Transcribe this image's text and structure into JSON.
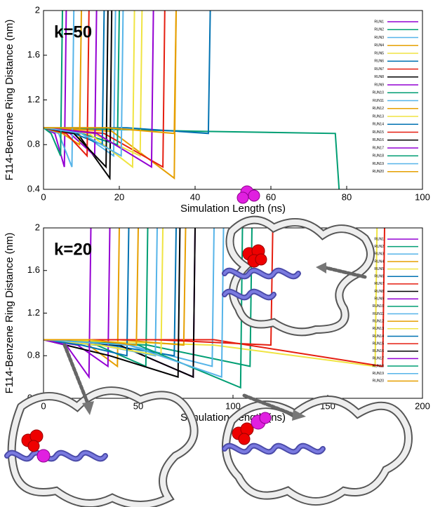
{
  "chart_data": [
    {
      "type": "line",
      "annotation": "k=50",
      "x_label": "Simulation Length (ns)",
      "y_label": "F114-Benzene Ring Distance (nm)",
      "xlim": [
        0,
        100
      ],
      "xticks": [
        0,
        20,
        40,
        60,
        80,
        100
      ],
      "ylim": [
        0.4,
        2
      ],
      "yticks": [
        0.4,
        0.8,
        1.2,
        1.6,
        2
      ],
      "legend": "right",
      "series": [
        {
          "name": "RUN1",
          "color": "#9400d3",
          "x": [
            0,
            3,
            5.5,
            6
          ],
          "values": [
            0.95,
            0.9,
            0.6,
            2
          ]
        },
        {
          "name": "RUN2",
          "color": "#009e73",
          "x": [
            0,
            40,
            77,
            78
          ],
          "values": [
            0.95,
            0.92,
            0.9,
            0.4
          ]
        },
        {
          "name": "RUN3",
          "color": "#56b4e9",
          "x": [
            0,
            10,
            18.5,
            19
          ],
          "values": [
            0.95,
            0.9,
            0.7,
            2
          ]
        },
        {
          "name": "RUN4",
          "color": "#e69f00",
          "x": [
            0,
            18,
            34.5,
            35
          ],
          "values": [
            0.95,
            0.92,
            0.5,
            2
          ]
        },
        {
          "name": "RUN5",
          "color": "#f0e442",
          "x": [
            0,
            13,
            25.5,
            26
          ],
          "values": [
            0.95,
            0.9,
            0.7,
            2
          ]
        },
        {
          "name": "RUN6",
          "color": "#0072b2",
          "x": [
            0,
            22,
            43.5,
            44
          ],
          "values": [
            0.95,
            0.95,
            0.9,
            2
          ]
        },
        {
          "name": "RUN7",
          "color": "#e51e10",
          "x": [
            0,
            16,
            31.5,
            32
          ],
          "values": [
            0.95,
            0.9,
            0.6,
            2
          ]
        },
        {
          "name": "RUN8",
          "color": "#000000",
          "x": [
            0,
            9,
            17.5,
            18
          ],
          "values": [
            0.95,
            0.9,
            0.5,
            2
          ]
        },
        {
          "name": "RUN9",
          "color": "#9400d3",
          "x": [
            0,
            7,
            13.5,
            14
          ],
          "values": [
            0.95,
            0.9,
            0.7,
            2
          ]
        },
        {
          "name": "RUN10",
          "color": "#009e73",
          "x": [
            0,
            10,
            19.5,
            20
          ],
          "values": [
            0.95,
            0.9,
            0.8,
            2
          ]
        },
        {
          "name": "RUN11",
          "color": "#56b4e9",
          "x": [
            0,
            4,
            7.5,
            8
          ],
          "values": [
            0.95,
            0.9,
            0.6,
            2
          ]
        },
        {
          "name": "RUN12",
          "color": "#e69f00",
          "x": [
            0,
            5,
            9.5,
            10
          ],
          "values": [
            0.95,
            0.9,
            0.8,
            2
          ]
        },
        {
          "name": "RUN13",
          "color": "#f0e442",
          "x": [
            0,
            12,
            23.5,
            24
          ],
          "values": [
            0.95,
            0.9,
            0.6,
            2
          ]
        },
        {
          "name": "RUN14",
          "color": "#0072b2",
          "x": [
            0,
            8,
            15.5,
            16
          ],
          "values": [
            0.95,
            0.9,
            0.8,
            2
          ]
        },
        {
          "name": "RUN15",
          "color": "#e51e10",
          "x": [
            0,
            6,
            11.5,
            12
          ],
          "values": [
            0.95,
            0.9,
            0.7,
            2
          ]
        },
        {
          "name": "RUN16",
          "color": "#000000",
          "x": [
            0,
            8,
            16.5,
            17
          ],
          "values": [
            0.95,
            0.9,
            0.6,
            2
          ]
        },
        {
          "name": "RUN17",
          "color": "#9400d3",
          "x": [
            0,
            14,
            28.5,
            29
          ],
          "values": [
            0.95,
            0.9,
            0.6,
            2
          ]
        },
        {
          "name": "RUN18",
          "color": "#009e73",
          "x": [
            0,
            2,
            4.5,
            5
          ],
          "values": [
            0.95,
            0.9,
            0.7,
            2
          ]
        },
        {
          "name": "RUN19",
          "color": "#56b4e9",
          "x": [
            0,
            10,
            20.5,
            21
          ],
          "values": [
            0.95,
            0.9,
            0.7,
            2
          ]
        },
        {
          "name": "RUN20",
          "color": "#e69f00",
          "x": [
            0,
            17,
            34.5,
            35
          ],
          "values": [
            0.95,
            0.95,
            0.9,
            2
          ]
        }
      ]
    },
    {
      "type": "line",
      "annotation": "k=20",
      "x_label": "Simulation Length (ns)",
      "y_label": "F114-Benzene Ring Distance (nm)",
      "xlim": [
        0,
        200
      ],
      "xticks": [
        0,
        50,
        100,
        150,
        200
      ],
      "ylim": [
        0.4,
        2
      ],
      "yticks": [
        0.4,
        0.8,
        1.2,
        1.6,
        2
      ],
      "legend": "right",
      "series": [
        {
          "name": "RUN1",
          "color": "#9400d3",
          "x": [
            0,
            40,
            79,
            80
          ],
          "values": [
            0.95,
            0.9,
            0.6,
            2
          ]
        },
        {
          "name": "RUN2",
          "color": "#009e73",
          "x": [
            0,
            55,
            109,
            110
          ],
          "values": [
            0.95,
            0.9,
            0.7,
            2
          ]
        },
        {
          "name": "RUN3",
          "color": "#56b4e9",
          "x": [
            0,
            45,
            89,
            90
          ],
          "values": [
            0.95,
            0.9,
            0.7,
            2
          ]
        },
        {
          "name": "RUN4",
          "color": "#e69f00",
          "x": [
            0,
            20,
            39,
            40
          ],
          "values": [
            0.95,
            0.95,
            0.7,
            2
          ]
        },
        {
          "name": "RUN5",
          "color": "#f0e442",
          "x": [
            0,
            90,
            175,
            176
          ],
          "values": [
            0.95,
            0.9,
            0.7,
            2
          ]
        },
        {
          "name": "RUN6",
          "color": "#0072b2",
          "x": [
            0,
            35,
            69,
            70
          ],
          "values": [
            0.95,
            0.9,
            0.8,
            2
          ]
        },
        {
          "name": "RUN7",
          "color": "#e51e10",
          "x": [
            0,
            90,
            179,
            180
          ],
          "values": [
            0.95,
            0.95,
            0.7,
            2
          ]
        },
        {
          "name": "RUN8",
          "color": "#000000",
          "x": [
            0,
            40,
            79,
            80
          ],
          "values": [
            0.95,
            0.9,
            0.6,
            2
          ]
        },
        {
          "name": "RUN9",
          "color": "#9400d3",
          "x": [
            0,
            18,
            34,
            35
          ],
          "values": [
            0.95,
            0.9,
            0.7,
            2
          ]
        },
        {
          "name": "RUN10",
          "color": "#009e73",
          "x": [
            0,
            28,
            54,
            55
          ],
          "values": [
            0.95,
            0.9,
            0.7,
            2
          ]
        },
        {
          "name": "RUN11",
          "color": "#56b4e9",
          "x": [
            0,
            30,
            59,
            60
          ],
          "values": [
            0.95,
            0.9,
            0.8,
            2
          ]
        },
        {
          "name": "RUN12",
          "color": "#e69f00",
          "x": [
            0,
            40,
            74,
            75
          ],
          "values": [
            0.95,
            0.95,
            0.9,
            2
          ]
        },
        {
          "name": "RUN13",
          "color": "#f0e442",
          "x": [
            0,
            30,
            62,
            63
          ],
          "values": [
            0.95,
            0.9,
            0.8,
            2
          ]
        },
        {
          "name": "RUN14",
          "color": "#0072b2",
          "x": [
            0,
            20,
            44,
            45
          ],
          "values": [
            0.95,
            0.9,
            0.8,
            2
          ]
        },
        {
          "name": "RUN15",
          "color": "#e51e10",
          "x": [
            0,
            60,
            120,
            121
          ],
          "values": [
            0.95,
            0.95,
            0.9,
            2
          ]
        },
        {
          "name": "RUN16",
          "color": "#000000",
          "x": [
            0,
            35,
            71,
            72
          ],
          "values": [
            0.95,
            0.8,
            0.6,
            2
          ]
        },
        {
          "name": "RUN17",
          "color": "#9400d3",
          "x": [
            0,
            12,
            24,
            25
          ],
          "values": [
            0.95,
            0.9,
            0.6,
            2
          ]
        },
        {
          "name": "RUN18",
          "color": "#009e73",
          "x": [
            0,
            50,
            104,
            105
          ],
          "values": [
            0.95,
            0.9,
            0.5,
            2
          ]
        },
        {
          "name": "RUN19",
          "color": "#56b4e9",
          "x": [
            0,
            45,
            94,
            95
          ],
          "values": [
            0.95,
            0.9,
            0.6,
            2
          ]
        },
        {
          "name": "RUN20",
          "color": "#e69f00",
          "x": [
            0,
            25,
            49,
            50
          ],
          "values": [
            0.95,
            0.95,
            0.9,
            2
          ]
        }
      ]
    }
  ]
}
